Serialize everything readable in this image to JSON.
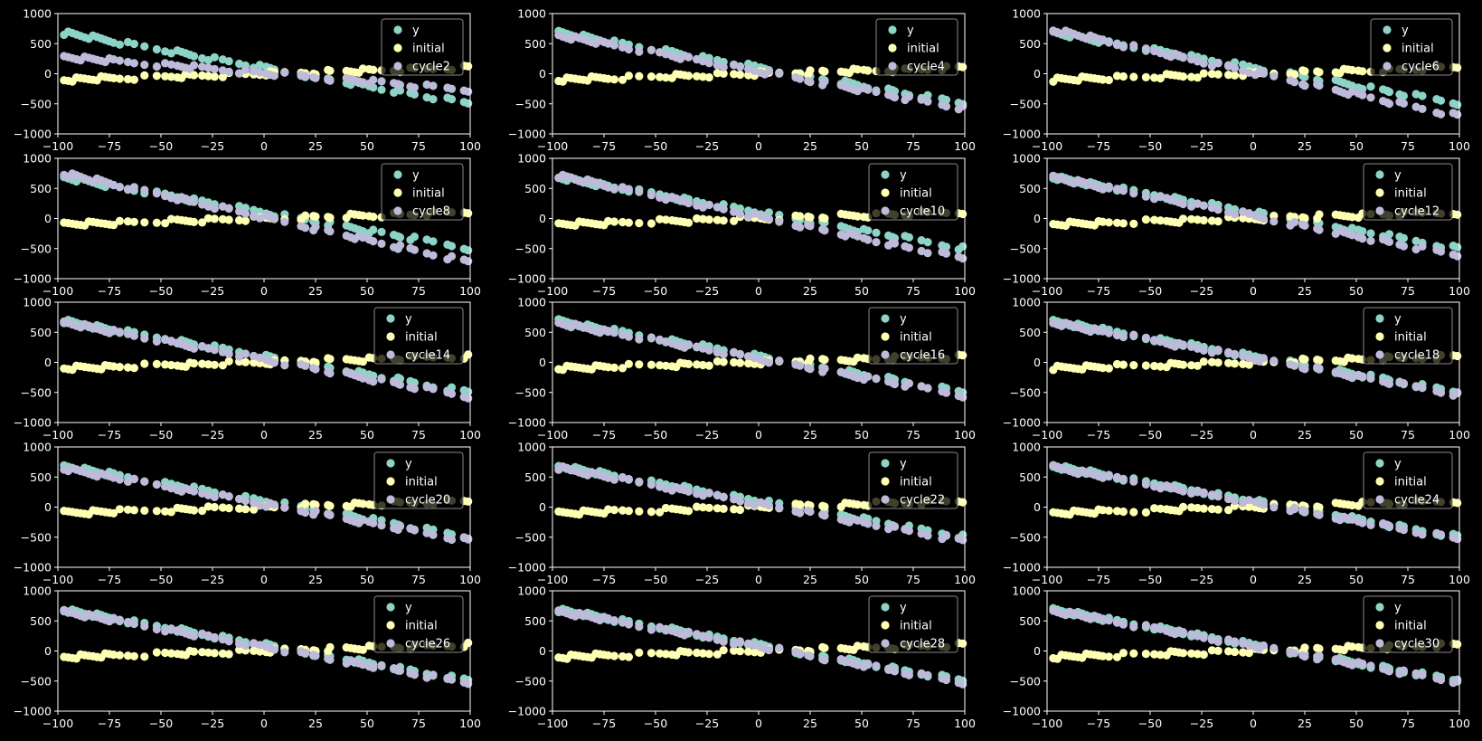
{
  "figure": {
    "background": "#000000",
    "colors": {
      "y": "#8dd3c7",
      "initial": "#ffffb3",
      "cycle": "#bebada",
      "axis": "#ffffff"
    }
  },
  "x_samples": [
    -97,
    -95,
    -93,
    -91,
    -89,
    -87,
    -85,
    -83,
    -81,
    -79,
    -77,
    -75,
    -73,
    -70,
    -66,
    -63,
    -58,
    -52,
    -48,
    -45,
    -42,
    -40,
    -38,
    -36,
    -34,
    -30,
    -27,
    -24,
    -20,
    -17,
    -12,
    -9,
    -5,
    -2,
    1,
    3,
    5,
    10,
    18,
    20,
    24,
    25,
    31,
    32,
    40,
    42,
    44,
    46,
    48,
    51,
    53,
    57,
    63,
    65,
    66,
    71,
    73,
    79,
    82,
    89,
    91,
    97,
    99
  ],
  "chart_data": [
    {
      "type": "scatter",
      "legend": [
        "y",
        "initial",
        "cycle2"
      ],
      "legend_position": "upper-right",
      "xlim": [
        -100,
        100
      ],
      "ylim": [
        -1000,
        1000
      ],
      "xticks": [
        -100,
        -75,
        -50,
        -25,
        0,
        25,
        50,
        75,
        100
      ],
      "yticks": [
        -1000,
        -500,
        0,
        500,
        1000
      ],
      "series": [
        {
          "name": "y",
          "color": "#8dd3c7",
          "slope": -6,
          "intercept": 100
        },
        {
          "name": "initial",
          "color": "#ffffb3",
          "slope": 1,
          "intercept": 0
        },
        {
          "name": "cycle2",
          "color": "#bebada",
          "slope": -2.8,
          "intercept": 10
        }
      ]
    },
    {
      "type": "scatter",
      "legend": [
        "y",
        "initial",
        "cycle4"
      ],
      "legend_position": "upper-right",
      "xlim": [
        -100,
        100
      ],
      "ylim": [
        -1000,
        1000
      ],
      "xticks": [
        -100,
        -75,
        -50,
        -25,
        0,
        25,
        50,
        75,
        100
      ],
      "yticks": [
        -1000,
        -500,
        0,
        500,
        1000
      ],
      "series": [
        {
          "name": "y",
          "color": "#8dd3c7",
          "slope": -6,
          "intercept": 100
        },
        {
          "name": "initial",
          "color": "#ffffb3",
          "slope": 1,
          "intercept": 0
        },
        {
          "name": "cycle4",
          "color": "#bebada",
          "slope": -6.2,
          "intercept": 40
        }
      ]
    },
    {
      "type": "scatter",
      "legend": [
        "y",
        "initial",
        "cycle6"
      ],
      "legend_position": "upper-right",
      "xlim": [
        -100,
        100
      ],
      "ylim": [
        -1000,
        1000
      ],
      "xticks": [
        -100,
        -75,
        -50,
        -25,
        0,
        25,
        50,
        75,
        100
      ],
      "yticks": [
        -1000,
        -500,
        0,
        500,
        1000
      ],
      "series": [
        {
          "name": "y",
          "color": "#8dd3c7",
          "slope": -6,
          "intercept": 100
        },
        {
          "name": "initial",
          "color": "#ffffb3",
          "slope": 1,
          "intercept": 0
        },
        {
          "name": "cycle6",
          "color": "#bebada",
          "slope": -7.3,
          "intercept": 20
        }
      ]
    },
    {
      "type": "scatter",
      "legend": [
        "y",
        "initial",
        "cycle8"
      ],
      "legend_position": "upper-right",
      "xlim": [
        -100,
        100
      ],
      "ylim": [
        -1000,
        1000
      ],
      "xticks": [
        -100,
        -75,
        -50,
        -25,
        0,
        25,
        50,
        75,
        100
      ],
      "yticks": [
        -1000,
        -500,
        0,
        500,
        1000
      ],
      "series": [
        {
          "name": "y",
          "color": "#8dd3c7",
          "slope": -6,
          "intercept": 100
        },
        {
          "name": "initial",
          "color": "#ffffb3",
          "slope": 1,
          "intercept": 0
        },
        {
          "name": "cycle8",
          "color": "#bebada",
          "slope": -7.5,
          "intercept": 20
        }
      ]
    },
    {
      "type": "scatter",
      "legend": [
        "y",
        "initial",
        "cycle10"
      ],
      "legend_position": "upper-right",
      "xlim": [
        -100,
        100
      ],
      "ylim": [
        -1000,
        1000
      ],
      "xticks": [
        -100,
        -75,
        -50,
        -25,
        0,
        25,
        50,
        75,
        100
      ],
      "yticks": [
        -1000,
        -500,
        0,
        500,
        1000
      ],
      "series": [
        {
          "name": "y",
          "color": "#8dd3c7",
          "slope": -6,
          "intercept": 100
        },
        {
          "name": "initial",
          "color": "#ffffb3",
          "slope": 1,
          "intercept": 0
        },
        {
          "name": "cycle10",
          "color": "#bebada",
          "slope": -7.0,
          "intercept": 30
        }
      ]
    },
    {
      "type": "scatter",
      "legend": [
        "y",
        "initial",
        "cycle12"
      ],
      "legend_position": "upper-right",
      "xlim": [
        -100,
        100
      ],
      "ylim": [
        -1000,
        1000
      ],
      "xticks": [
        -100,
        -75,
        -50,
        -25,
        0,
        25,
        50,
        75,
        100
      ],
      "yticks": [
        -1000,
        -500,
        0,
        500,
        1000
      ],
      "series": [
        {
          "name": "y",
          "color": "#8dd3c7",
          "slope": -6,
          "intercept": 100
        },
        {
          "name": "initial",
          "color": "#ffffb3",
          "slope": 1,
          "intercept": 0
        },
        {
          "name": "cycle12",
          "color": "#bebada",
          "slope": -6.6,
          "intercept": 40
        }
      ]
    },
    {
      "type": "scatter",
      "legend": [
        "y",
        "initial",
        "cycle14"
      ],
      "legend_position": "upper-right",
      "xlim": [
        -100,
        100
      ],
      "ylim": [
        -1000,
        1000
      ],
      "xticks": [
        -100,
        -75,
        -50,
        -25,
        0,
        25,
        50,
        75,
        100
      ],
      "yticks": [
        -1000,
        -500,
        0,
        500,
        1000
      ],
      "series": [
        {
          "name": "y",
          "color": "#8dd3c7",
          "slope": -6,
          "intercept": 100
        },
        {
          "name": "initial",
          "color": "#ffffb3",
          "slope": 1,
          "intercept": 0
        },
        {
          "name": "cycle14",
          "color": "#bebada",
          "slope": -6.3,
          "intercept": 50
        }
      ]
    },
    {
      "type": "scatter",
      "legend": [
        "y",
        "initial",
        "cycle16"
      ],
      "legend_position": "upper-right",
      "xlim": [
        -100,
        100
      ],
      "ylim": [
        -1000,
        1000
      ],
      "xticks": [
        -100,
        -75,
        -50,
        -25,
        0,
        25,
        50,
        75,
        100
      ],
      "yticks": [
        -1000,
        -500,
        0,
        500,
        1000
      ],
      "series": [
        {
          "name": "y",
          "color": "#8dd3c7",
          "slope": -6,
          "intercept": 100
        },
        {
          "name": "initial",
          "color": "#ffffb3",
          "slope": 1,
          "intercept": 0
        },
        {
          "name": "cycle16",
          "color": "#bebada",
          "slope": -6.1,
          "intercept": 60
        }
      ]
    },
    {
      "type": "scatter",
      "legend": [
        "y",
        "initial",
        "cycle18"
      ],
      "legend_position": "upper-right",
      "xlim": [
        -100,
        100
      ],
      "ylim": [
        -1000,
        1000
      ],
      "xticks": [
        -100,
        -75,
        -50,
        -25,
        0,
        25,
        50,
        75,
        100
      ],
      "yticks": [
        -1000,
        -500,
        0,
        500,
        1000
      ],
      "series": [
        {
          "name": "y",
          "color": "#8dd3c7",
          "slope": -6,
          "intercept": 100
        },
        {
          "name": "initial",
          "color": "#ffffb3",
          "slope": 1,
          "intercept": 0
        },
        {
          "name": "cycle18",
          "color": "#bebada",
          "slope": -6.05,
          "intercept": 70
        }
      ]
    },
    {
      "type": "scatter",
      "legend": [
        "y",
        "initial",
        "cycle20"
      ],
      "legend_position": "upper-right",
      "xlim": [
        -100,
        100
      ],
      "ylim": [
        -1000,
        1000
      ],
      "xticks": [
        -100,
        -75,
        -50,
        -25,
        0,
        25,
        50,
        75,
        100
      ],
      "yticks": [
        -1000,
        -500,
        0,
        500,
        1000
      ],
      "series": [
        {
          "name": "y",
          "color": "#8dd3c7",
          "slope": -6,
          "intercept": 100
        },
        {
          "name": "initial",
          "color": "#ffffb3",
          "slope": 1,
          "intercept": 0
        },
        {
          "name": "cycle20",
          "color": "#bebada",
          "slope": -6.1,
          "intercept": 50
        }
      ]
    },
    {
      "type": "scatter",
      "legend": [
        "y",
        "initial",
        "cycle22"
      ],
      "legend_position": "upper-right",
      "xlim": [
        -100,
        100
      ],
      "ylim": [
        -1000,
        1000
      ],
      "xticks": [
        -100,
        -75,
        -50,
        -25,
        0,
        25,
        50,
        75,
        100
      ],
      "yticks": [
        -1000,
        -500,
        0,
        500,
        1000
      ],
      "series": [
        {
          "name": "y",
          "color": "#8dd3c7",
          "slope": -6,
          "intercept": 100
        },
        {
          "name": "initial",
          "color": "#ffffb3",
          "slope": 1,
          "intercept": 0
        },
        {
          "name": "cycle22",
          "color": "#bebada",
          "slope": -6.15,
          "intercept": 55
        }
      ]
    },
    {
      "type": "scatter",
      "legend": [
        "y",
        "initial",
        "cycle24"
      ],
      "legend_position": "upper-right",
      "xlim": [
        -100,
        100
      ],
      "ylim": [
        -1000,
        1000
      ],
      "xticks": [
        -100,
        -75,
        -50,
        -25,
        0,
        25,
        50,
        75,
        100
      ],
      "yticks": [
        -1000,
        -500,
        0,
        500,
        1000
      ],
      "series": [
        {
          "name": "y",
          "color": "#8dd3c7",
          "slope": -6,
          "intercept": 100
        },
        {
          "name": "initial",
          "color": "#ffffb3",
          "slope": 1,
          "intercept": 0
        },
        {
          "name": "cycle24",
          "color": "#bebada",
          "slope": -6.05,
          "intercept": 75
        }
      ]
    },
    {
      "type": "scatter",
      "legend": [
        "y",
        "initial",
        "cycle26"
      ],
      "legend_position": "upper-right",
      "xlim": [
        -100,
        100
      ],
      "ylim": [
        -1000,
        1000
      ],
      "xticks": [
        -100,
        -75,
        -50,
        -25,
        0,
        25,
        50,
        75,
        100
      ],
      "yticks": [
        -1000,
        -500,
        0,
        500,
        1000
      ],
      "series": [
        {
          "name": "y",
          "color": "#8dd3c7",
          "slope": -6,
          "intercept": 100
        },
        {
          "name": "initial",
          "color": "#ffffb3",
          "slope": 1,
          "intercept": 0
        },
        {
          "name": "cycle26",
          "color": "#bebada",
          "slope": -6.05,
          "intercept": 70
        }
      ]
    },
    {
      "type": "scatter",
      "legend": [
        "y",
        "initial",
        "cycle28"
      ],
      "legend_position": "upper-right",
      "xlim": [
        -100,
        100
      ],
      "ylim": [
        -1000,
        1000
      ],
      "xticks": [
        -100,
        -75,
        -50,
        -25,
        0,
        25,
        50,
        75,
        100
      ],
      "yticks": [
        -1000,
        -500,
        0,
        500,
        1000
      ],
      "series": [
        {
          "name": "y",
          "color": "#8dd3c7",
          "slope": -6,
          "intercept": 100
        },
        {
          "name": "initial",
          "color": "#ffffb3",
          "slope": 1,
          "intercept": 0
        },
        {
          "name": "cycle28",
          "color": "#bebada",
          "slope": -6.05,
          "intercept": 75
        }
      ]
    },
    {
      "type": "scatter",
      "legend": [
        "y",
        "initial",
        "cycle30"
      ],
      "legend_position": "upper-right",
      "xlim": [
        -100,
        100
      ],
      "ylim": [
        -1000,
        1000
      ],
      "xticks": [
        -100,
        -75,
        -50,
        -25,
        0,
        25,
        50,
        75,
        100
      ],
      "yticks": [
        -1000,
        -500,
        0,
        500,
        1000
      ],
      "series": [
        {
          "name": "y",
          "color": "#8dd3c7",
          "slope": -6,
          "intercept": 100
        },
        {
          "name": "initial",
          "color": "#ffffb3",
          "slope": 1,
          "intercept": 0
        },
        {
          "name": "cycle30",
          "color": "#bebada",
          "slope": -6.02,
          "intercept": 85
        }
      ]
    }
  ]
}
